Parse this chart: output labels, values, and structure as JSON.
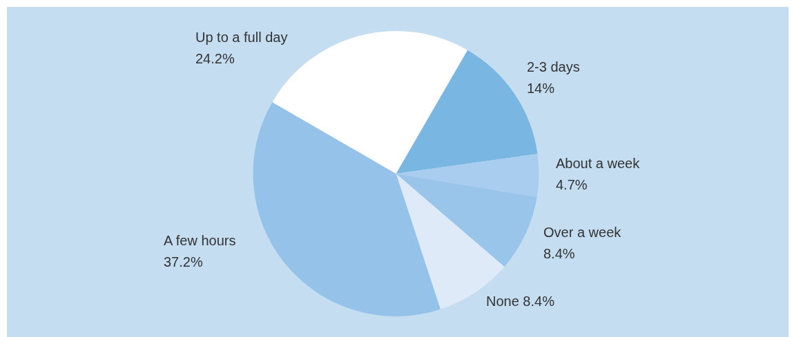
{
  "chart_data": {
    "type": "pie",
    "categories": [
      "2-3 days",
      "About a week",
      "Over a week",
      "None",
      "A few hours",
      "Up to a full day"
    ],
    "values": [
      14,
      4.7,
      8.4,
      8.4,
      37.2,
      24.2
    ],
    "value_labels": [
      "14%",
      "4.7%",
      "8.4%",
      "8.4%",
      "37.2%",
      "24.2%"
    ],
    "colors": [
      "#7ab6e2",
      "#a9cdee",
      "#99c5ea",
      "#deeaf7",
      "#94c2e8",
      "#ffffff"
    ],
    "legend": false
  }
}
